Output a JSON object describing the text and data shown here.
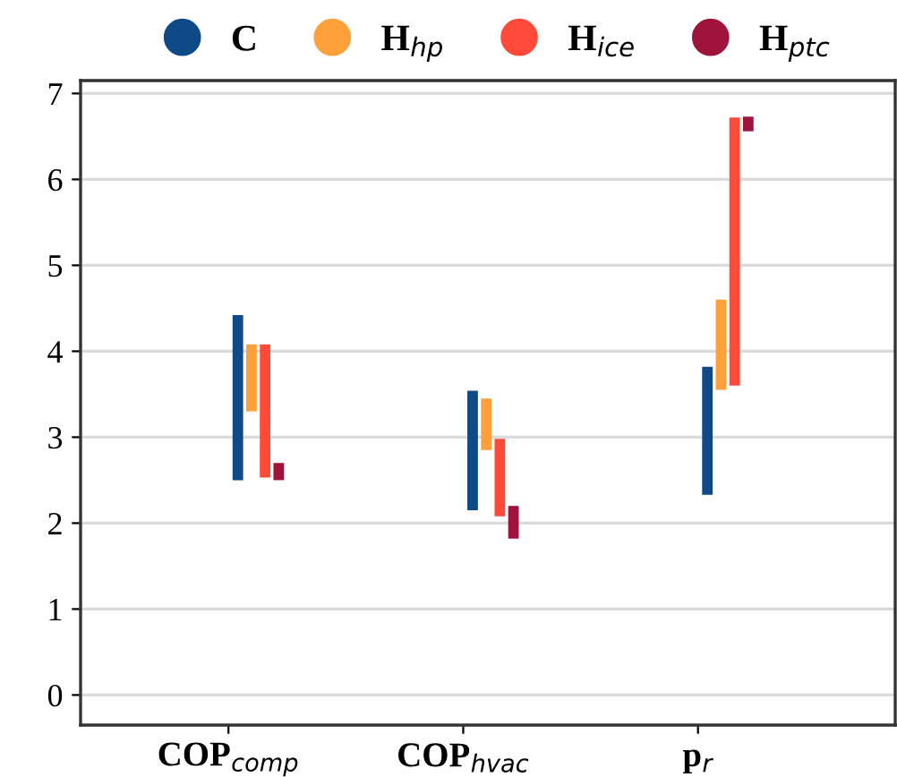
{
  "chart_data": {
    "type": "bar",
    "categories": [
      "COP$_{comp}$",
      "COP$_{hvac}$",
      "p$_{r}$"
    ],
    "series": [
      {
        "name": "C",
        "color": "#0d4a87",
        "base": [
          2.5,
          2.15,
          2.33
        ],
        "values": [
          1.92,
          1.39,
          1.49
        ]
      },
      {
        "name": "H$_{hp}$",
        "color": "#ffa03a",
        "base": [
          3.3,
          2.85,
          3.55
        ],
        "values": [
          0.78,
          0.6,
          1.05
        ]
      },
      {
        "name": "H$_{ice}$",
        "color": "#ff4a3a",
        "base": [
          2.53,
          2.08,
          3.6
        ],
        "values": [
          1.55,
          0.9,
          3.12
        ]
      },
      {
        "name": "H$_{ptc}$",
        "color": "#a0133c",
        "base": [
          2.5,
          1.82,
          6.56
        ],
        "values": [
          0.2,
          0.38,
          0.17
        ]
      }
    ],
    "ylim": [
      -0.35,
      7.15
    ],
    "yticks": [
      0,
      1,
      2,
      3,
      4,
      5,
      6,
      7
    ],
    "grid": "y",
    "legend": "top",
    "marker": "circle"
  }
}
